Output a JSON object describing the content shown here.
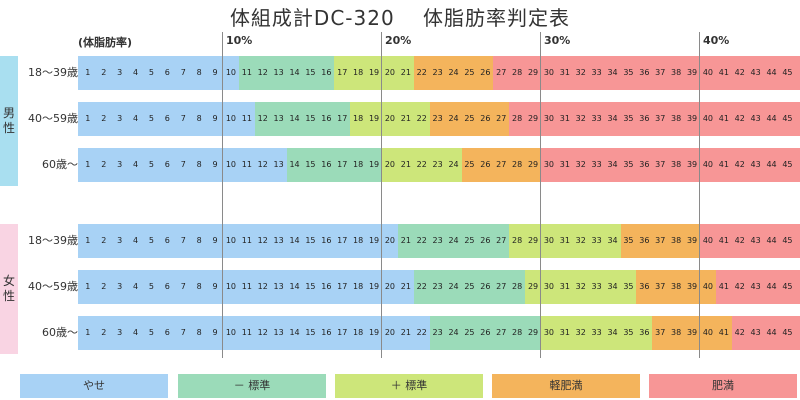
{
  "title": "体組成計DC-320　 体脂肪率判定表",
  "header": "(体脂肪率)",
  "percent_labels": [
    "10%",
    "20%",
    "30%",
    "40%"
  ],
  "genders": [
    {
      "label_chars": [
        "男",
        "性"
      ]
    },
    {
      "label_chars": [
        "女",
        "性"
      ]
    }
  ],
  "colors": {
    "yase": "#a8d2f5",
    "minus_hyojun": "#9bdbb9",
    "plus_hyojun": "#cde67a",
    "kei_himan": "#f4b45c",
    "himan": "#f79696",
    "male_band": "#a9dff0",
    "female_band": "#f9d4e3"
  },
  "chart_data": {
    "type": "table",
    "title": "体組成計DC-320　 体脂肪率判定表",
    "xlabel": "(体脂肪率)",
    "x_ticks": [
      "10%",
      "20%",
      "30%",
      "40%"
    ],
    "x_range": [
      1,
      45
    ],
    "categories": [
      "やせ",
      "－ 標準",
      "＋ 標準",
      "軽肥満",
      "肥満"
    ],
    "rows": [
      {
        "gender": "男性",
        "age": "18〜39歳",
        "thresholds": [
          11,
          17,
          22,
          27
        ]
      },
      {
        "gender": "男性",
        "age": "40〜59歳",
        "thresholds": [
          12,
          18,
          23,
          28
        ]
      },
      {
        "gender": "男性",
        "age": "60歳〜",
        "thresholds": [
          14,
          20,
          25,
          30
        ]
      },
      {
        "gender": "女性",
        "age": "18〜39歳",
        "thresholds": [
          21,
          28,
          35,
          40
        ]
      },
      {
        "gender": "女性",
        "age": "40〜59歳",
        "thresholds": [
          22,
          29,
          36,
          41
        ]
      },
      {
        "gender": "女性",
        "age": "60歳〜",
        "thresholds": [
          23,
          30,
          37,
          42
        ]
      }
    ]
  },
  "legend": [
    {
      "label": "やせ",
      "key": "yase"
    },
    {
      "label": "－ 標準",
      "key": "minus_hyojun"
    },
    {
      "label": "＋ 標準",
      "key": "plus_hyojun"
    },
    {
      "label": "軽肥満",
      "key": "kei_himan"
    },
    {
      "label": "肥満",
      "key": "himan"
    }
  ]
}
